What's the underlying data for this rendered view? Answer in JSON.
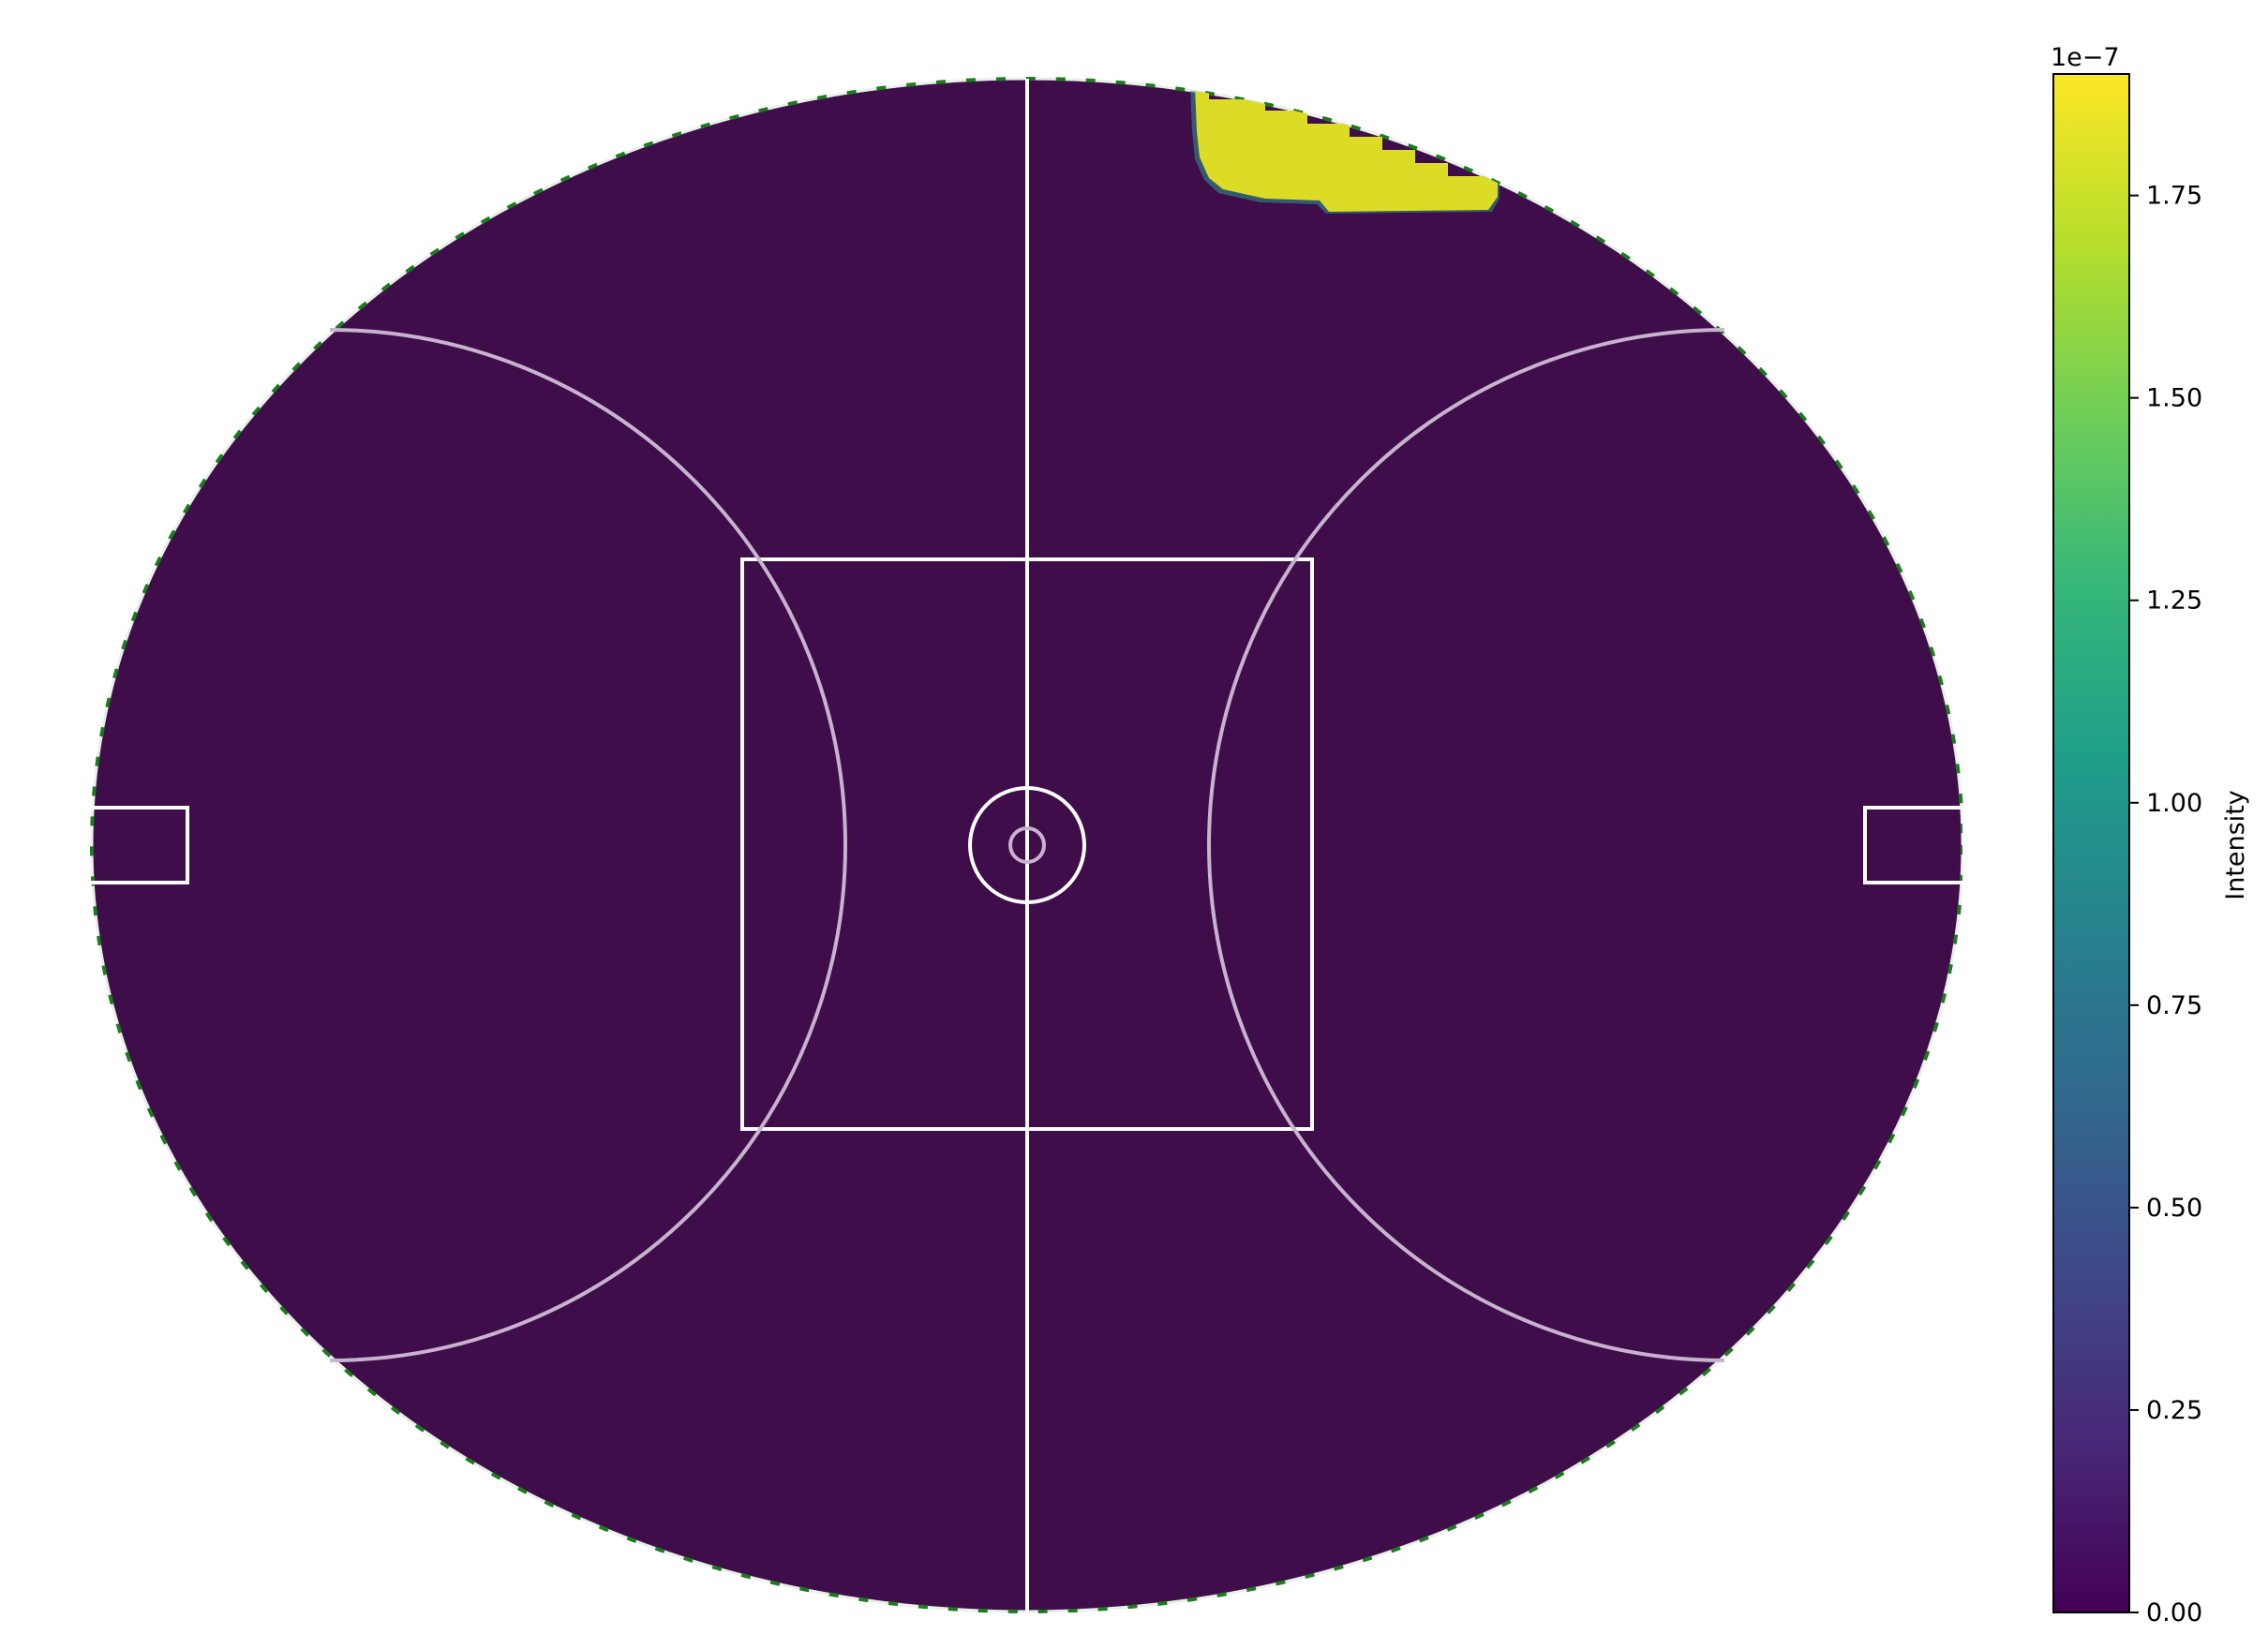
{
  "chart_data": {
    "type": "heatmap",
    "title": "",
    "xlabel": "",
    "ylabel": "",
    "grid": false,
    "colormap": "viridis",
    "colorbar": {
      "label": "Intensity",
      "offset_text": "1e−7",
      "range": [
        0,
        1.9
      ],
      "ticks": [
        0.0,
        0.25,
        0.5,
        0.75,
        1.0,
        1.25,
        1.5,
        1.75
      ],
      "tick_labels": [
        "0.00",
        "0.25",
        "0.50",
        "0.75",
        "1.00",
        "1.25",
        "1.50",
        "1.75"
      ],
      "location": "right"
    },
    "field": {
      "shape": "oval",
      "background_value": 0.0,
      "markings": [
        "center-line",
        "center-square",
        "center-circle",
        "center-dot",
        "left-arc",
        "right-arc",
        "left-goal-square",
        "right-goal-square"
      ]
    },
    "hotspot": {
      "location": "top, right of center",
      "value": 1.85
    }
  },
  "colors": {
    "background": "#ffffff",
    "field_fill": "#3e0d4a",
    "hotspot": "#dcdb25",
    "markings": "#ffffff",
    "arcs": "#c8b3cf",
    "edge_dash": "#1d7a1f",
    "viridis_stops": [
      "#440154",
      "#482878",
      "#3e4989",
      "#31688e",
      "#26828e",
      "#1f9e89",
      "#35b779",
      "#6ece58",
      "#b5de2b",
      "#fde725"
    ]
  }
}
